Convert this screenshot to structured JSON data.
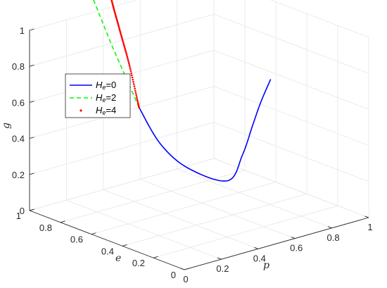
{
  "chart_data": {
    "type": "line3d",
    "title": "",
    "axes": {
      "x": {
        "label": "p",
        "range": [
          0,
          1
        ],
        "ticks": [
          "0",
          "0.2",
          "0.4",
          "0.6",
          "0.8",
          "1"
        ]
      },
      "y": {
        "label": "e",
        "range": [
          0,
          1
        ],
        "ticks": [
          "0",
          "0.2",
          "0.4",
          "0.6",
          "0.8",
          "1"
        ]
      },
      "z": {
        "label": "g",
        "range": [
          0,
          1
        ],
        "ticks": [
          "0",
          "0.2",
          "0.4",
          "0.6",
          "0.8",
          "1"
        ]
      }
    },
    "grid": true,
    "legend": {
      "placement": "left"
    },
    "series": [
      {
        "name": "He=0",
        "name_base": "H",
        "name_sub": "e",
        "name_rest": "=0",
        "style": "solid",
        "color": "#0000ff",
        "points": [
          [
            0.3,
            0.65,
            0.6
          ],
          [
            0.29,
            0.5,
            0.45
          ],
          [
            0.34,
            0.38,
            0.34
          ],
          [
            0.42,
            0.22,
            0.3
          ],
          [
            0.5,
            0.22,
            0.42
          ],
          [
            0.58,
            0.25,
            0.55
          ],
          [
            0.65,
            0.28,
            0.65
          ],
          [
            0.72,
            0.3,
            0.75
          ]
        ]
      },
      {
        "name": "He=2",
        "name_base": "H",
        "name_sub": "e",
        "name_rest": "=2",
        "style": "dashed",
        "color": "#00ff00",
        "points": [
          [
            0.3,
            0.65,
            0.6
          ],
          [
            0.21,
            0.72,
            0.95
          ],
          [
            0.18,
            0.8,
            1.18
          ],
          [
            0.19,
            0.88,
            1.27
          ],
          [
            0.27,
            0.95,
            1.33
          ],
          [
            0.37,
            1.0,
            1.38
          ]
        ]
      },
      {
        "name": "He=4",
        "name_base": "H",
        "name_sub": "e",
        "name_rest": "=4",
        "style": "dotted",
        "color": "#ff0000",
        "points": [
          [
            0.3,
            0.65,
            0.6
          ],
          [
            0.29,
            0.7,
            0.82
          ],
          [
            0.28,
            0.75,
            1.0
          ],
          [
            0.28,
            0.8,
            1.14
          ],
          [
            0.3,
            0.86,
            1.25
          ],
          [
            0.33,
            0.93,
            1.32
          ],
          [
            0.37,
            1.0,
            1.38
          ]
        ]
      }
    ]
  }
}
